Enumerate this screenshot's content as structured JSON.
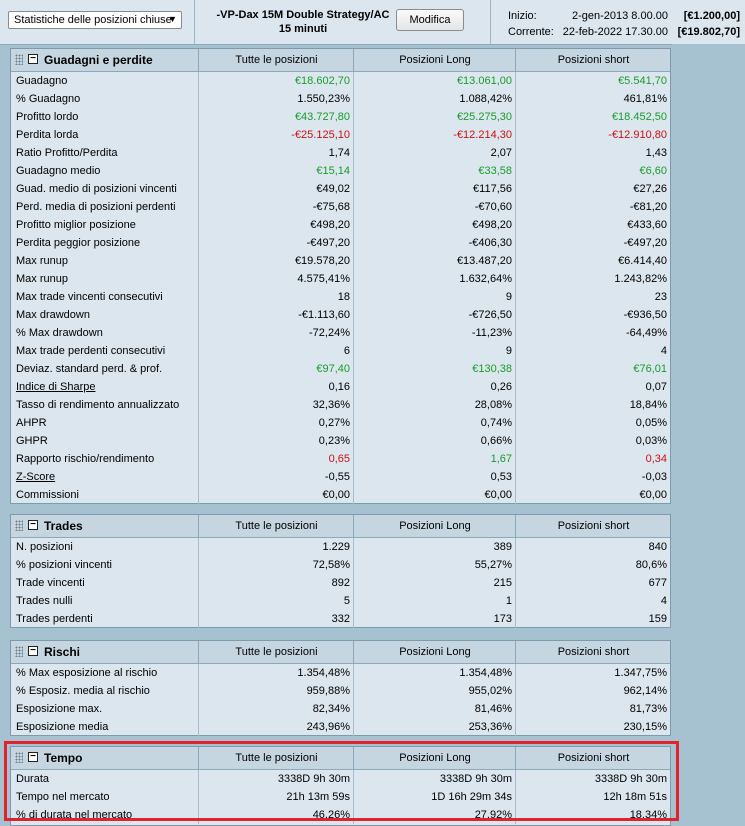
{
  "header": {
    "report_select": "Statistiche delle posizioni chiuse",
    "strategy_name": "-VP-Dax 15M Double Strategy/AC",
    "timeframe": "15 minuti",
    "edit_button": "Modifica",
    "start_label": "Inizio:",
    "start_date": "2-gen-2013 8.00.00",
    "start_value": "[€1.200,00]",
    "current_label": "Corrente:",
    "current_date": "22-feb-2022 17.30.00",
    "current_value": "[€19.802,70]"
  },
  "columns": [
    "Tutte le posizioni",
    "Posizioni Long",
    "Posizioni short"
  ],
  "sections": [
    {
      "title": "Guadagni e perdite",
      "rows": [
        {
          "label": "Guadagno",
          "all": "€18.602,70",
          "long": "€13.061,00",
          "short": "€5.541,70"
        },
        {
          "label": "% Guadagno",
          "all": "1.550,23%",
          "long": "1.088,42%",
          "short": "461,81%"
        },
        {
          "label": "Profitto lordo",
          "all": "€43.727,80",
          "long": "€25.275,30",
          "short": "€18.452,50"
        },
        {
          "label": "Perdita lorda",
          "all": "-€25.125,10",
          "long": "-€12.214,30",
          "short": "-€12.910,80"
        },
        {
          "label": "Ratio Profitto/Perdita",
          "all": "1,74",
          "long": "2,07",
          "short": "1,43"
        },
        {
          "label": "Guadagno medio",
          "all": "€15,14",
          "long": "€33,58",
          "short": "€6,60"
        },
        {
          "label": "Guad. medio di posizioni vincenti",
          "all": "€49,02",
          "long": "€117,56",
          "short": "€27,26"
        },
        {
          "label": "Perd. media di posizioni perdenti",
          "all": "-€75,68",
          "long": "-€70,60",
          "short": "-€81,20"
        },
        {
          "label": "Profitto miglior posizione",
          "all": "€498,20",
          "long": "€498,20",
          "short": "€433,60"
        },
        {
          "label": "Perdita peggior posizione",
          "all": "-€497,20",
          "long": "-€406,30",
          "short": "-€497,20"
        },
        {
          "label": "Max runup",
          "all": "€19.578,20",
          "long": "€13.487,20",
          "short": "€6.414,40"
        },
        {
          "label": "Max runup",
          "all": "4.575,41%",
          "long": "1.632,64%",
          "short": "1.243,82%"
        },
        {
          "label": "Max trade vincenti consecutivi",
          "all": "18",
          "long": "9",
          "short": "23"
        },
        {
          "label": "Max drawdown",
          "all": "-€1.113,60",
          "long": "-€726,50",
          "short": "-€936,50"
        },
        {
          "label": "% Max drawdown",
          "all": "-72,24%",
          "long": "-11,23%",
          "short": "-64,49%"
        },
        {
          "label": "Max trade perdenti consecutivi",
          "all": "6",
          "long": "9",
          "short": "4"
        },
        {
          "label": "Deviaz. standard perd. & prof.",
          "all": "€97,40",
          "long": "€130,38",
          "short": "€76,01"
        },
        {
          "label": "Indice di Sharpe",
          "all": "0,16",
          "long": "0,26",
          "short": "0,07"
        },
        {
          "label": "Tasso di rendimento annualizzato",
          "all": "32,36%",
          "long": "28,08%",
          "short": "18,84%"
        },
        {
          "label": "AHPR",
          "all": "0,27%",
          "long": "0,74%",
          "short": "0,05%"
        },
        {
          "label": "GHPR",
          "all": "0,23%",
          "long": "0,66%",
          "short": "0,03%"
        },
        {
          "label": "Rapporto rischio/rendimento",
          "all": "0,65",
          "long": "1,67",
          "short": "0,34"
        },
        {
          "label": "Z-Score",
          "all": "-0,55",
          "long": "0,53",
          "short": "-0,03"
        },
        {
          "label": "Commissioni",
          "all": "€0,00",
          "long": "€0,00",
          "short": "€0,00"
        }
      ]
    },
    {
      "title": "Trades",
      "rows": [
        {
          "label": "N. posizioni",
          "all": "1.229",
          "long": "389",
          "short": "840"
        },
        {
          "label": "% posizioni vincenti",
          "all": "72,58%",
          "long": "55,27%",
          "short": "80,6%"
        },
        {
          "label": "Trade vincenti",
          "all": "892",
          "long": "215",
          "short": "677"
        },
        {
          "label": "Trades nulli",
          "all": "5",
          "long": "1",
          "short": "4"
        },
        {
          "label": "Trades perdenti",
          "all": "332",
          "long": "173",
          "short": "159"
        }
      ]
    },
    {
      "title": "Rischi",
      "rows": [
        {
          "label": "% Max esposizione al rischio",
          "all": "1.354,48%",
          "long": "1.354,48%",
          "short": "1.347,75%"
        },
        {
          "label": "% Esposiz. media al rischio",
          "all": "959,88%",
          "long": "955,02%",
          "short": "962,14%"
        },
        {
          "label": "Esposizione max.",
          "all": "82,34%",
          "long": "81,46%",
          "short": "81,73%"
        },
        {
          "label": "Esposizione media",
          "all": "243,96%",
          "long": "253,36%",
          "short": "230,15%"
        }
      ]
    },
    {
      "title": "Tempo",
      "rows": [
        {
          "label": "Durata",
          "all": "3338D 9h 30m",
          "long": "3338D 9h 30m",
          "short": "3338D 9h 30m"
        },
        {
          "label": "Tempo nel mercato",
          "all": "21h 13m 59s",
          "long": "1D 16h 29m 34s",
          "short": "12h 18m 51s"
        },
        {
          "label": "% di durata nel mercato",
          "all": "46,26%",
          "long": "27,92%",
          "short": "18,34%"
        }
      ]
    }
  ],
  "colors": {
    "positive": "#1a9b2b",
    "negative": "#cc1111",
    "highlight": "#e0232d"
  }
}
